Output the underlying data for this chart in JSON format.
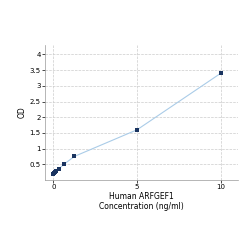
{
  "x_data": [
    0,
    0.04,
    0.08,
    0.16,
    0.31,
    0.63,
    1.25,
    5,
    10
  ],
  "y_data": [
    0.2,
    0.22,
    0.25,
    0.28,
    0.35,
    0.5,
    0.75,
    1.6,
    3.4
  ],
  "line_color": "#aacce8",
  "marker_color": "#1a3460",
  "marker_size": 3.5,
  "xlabel_line1": "Human ARFGEF1",
  "xlabel_line2": "Concentration (ng/ml)",
  "ylabel": "OD",
  "xlim": [
    -0.5,
    11
  ],
  "ylim": [
    0.0,
    4.3
  ],
  "yticks": [
    0.5,
    1.0,
    1.5,
    2.0,
    2.5,
    3.0,
    3.5,
    4.0
  ],
  "ytick_labels": [
    "0.5",
    "1",
    "1.5",
    "2",
    "2.5",
    "3",
    "3.5",
    "4"
  ],
  "xticks": [
    0,
    5,
    10
  ],
  "xtick_labels": [
    "0",
    "5",
    "10"
  ],
  "grid_color": "#cccccc",
  "background_color": "#ffffff",
  "axis_fontsize": 5.5,
  "tick_fontsize": 5.0,
  "ylabel_fontsize": 5.5
}
